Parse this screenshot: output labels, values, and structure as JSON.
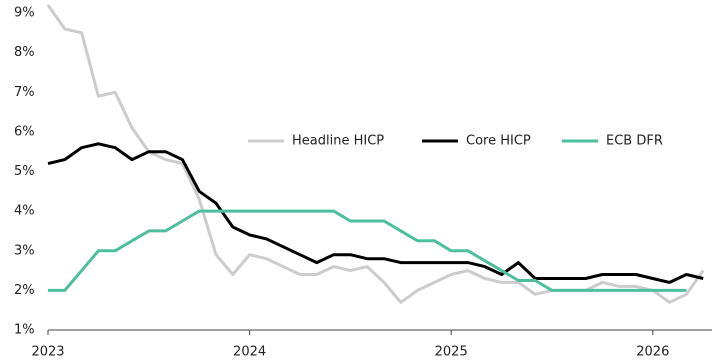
{
  "chart_data": {
    "type": "line",
    "categories": [
      "2023",
      null,
      null,
      null,
      null,
      null,
      null,
      null,
      null,
      null,
      null,
      null,
      "2024",
      null,
      null,
      null,
      null,
      null,
      null,
      null,
      null,
      null,
      null,
      null,
      "2025",
      null,
      null,
      null,
      null,
      null,
      null,
      null,
      null,
      null,
      null,
      null,
      "2026",
      null,
      null,
      null
    ],
    "series": [
      {
        "name": "Headline HICP",
        "color": "#cccccc",
        "values": [
          9.2,
          8.6,
          8.5,
          6.9,
          7.0,
          6.1,
          5.5,
          5.3,
          5.2,
          4.3,
          2.9,
          2.4,
          2.9,
          2.8,
          2.6,
          2.4,
          2.4,
          2.6,
          2.5,
          2.6,
          2.2,
          1.7,
          2.0,
          2.2,
          2.4,
          2.5,
          2.3,
          2.2,
          2.2,
          1.9,
          2.0,
          2.0,
          2.0,
          2.2,
          2.1,
          2.1,
          2.0,
          1.7,
          1.9,
          2.5
        ]
      },
      {
        "name": "Core HICP",
        "color": "#000000",
        "values": [
          5.2,
          5.3,
          5.6,
          5.7,
          5.6,
          5.3,
          5.5,
          5.5,
          5.3,
          4.5,
          4.2,
          3.6,
          3.4,
          3.3,
          3.1,
          2.9,
          2.7,
          2.9,
          2.9,
          2.8,
          2.8,
          2.7,
          2.7,
          2.7,
          2.7,
          2.7,
          2.6,
          2.4,
          2.7,
          2.3,
          2.3,
          2.3,
          2.3,
          2.4,
          2.4,
          2.4,
          2.3,
          2.2,
          2.4,
          2.3
        ]
      },
      {
        "name": "ECB DFR",
        "color": "#4dbf9f",
        "values": [
          2,
          2,
          2.5,
          3,
          3,
          3.25,
          3.5,
          3.5,
          3.75,
          4,
          4,
          4,
          4,
          4,
          4,
          4,
          4,
          4,
          3.75,
          3.75,
          3.75,
          3.5,
          3.25,
          3.25,
          3,
          3,
          2.75,
          2.5,
          2.25,
          2.25,
          2,
          2,
          2,
          2,
          2,
          2,
          2,
          2,
          2,
          null
        ]
      }
    ],
    "ylim": [
      1,
      9
    ],
    "yticks": [
      {
        "value": 1,
        "label": "1%"
      },
      {
        "value": 2,
        "label": "2%"
      },
      {
        "value": 3,
        "label": "3%"
      },
      {
        "value": 4,
        "label": "4%"
      },
      {
        "value": 5,
        "label": "5%"
      },
      {
        "value": 6,
        "label": "6%"
      },
      {
        "value": 7,
        "label": "7%"
      },
      {
        "value": 8,
        "label": "8%"
      },
      {
        "value": 9,
        "label": "9%"
      }
    ],
    "grid": false
  }
}
